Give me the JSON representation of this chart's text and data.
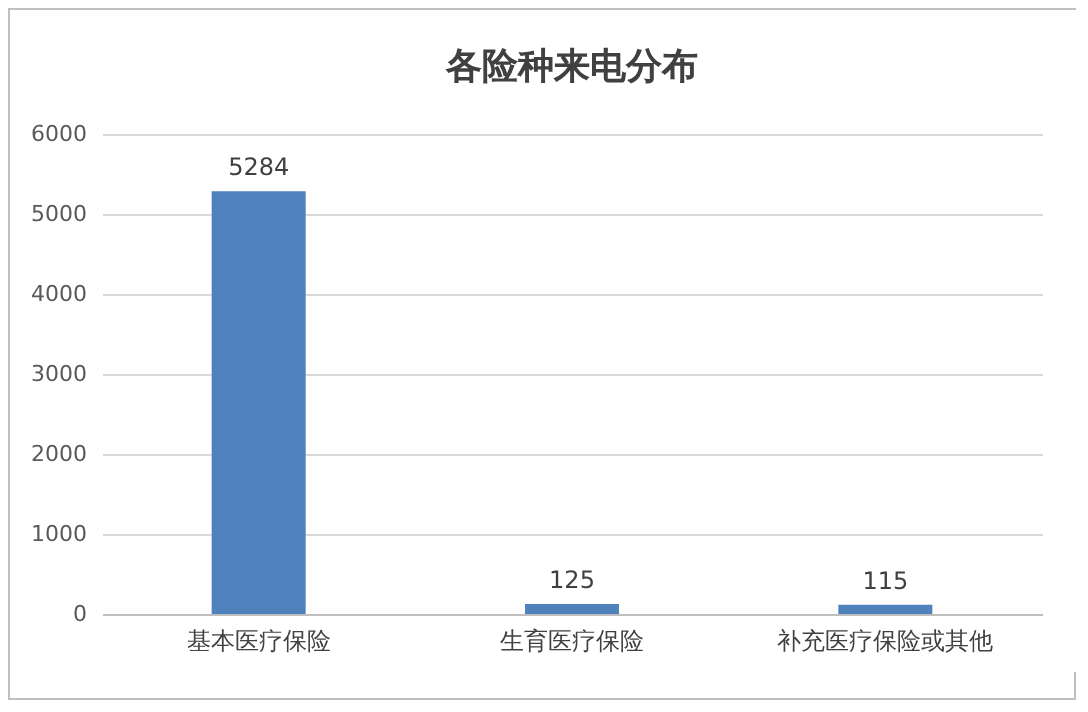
{
  "chart_data": {
    "type": "bar",
    "title": "各险种来电分布",
    "categories": [
      "基本医疗保险",
      "生育医疗保险",
      "补充医疗保险或其他"
    ],
    "values": [
      5284,
      125,
      115
    ],
    "color": "#4f81bd",
    "ylim": [
      0,
      6000
    ],
    "yticks": [
      0,
      1000,
      2000,
      3000,
      4000,
      5000,
      6000
    ],
    "grid": "y",
    "data_labels": true
  }
}
